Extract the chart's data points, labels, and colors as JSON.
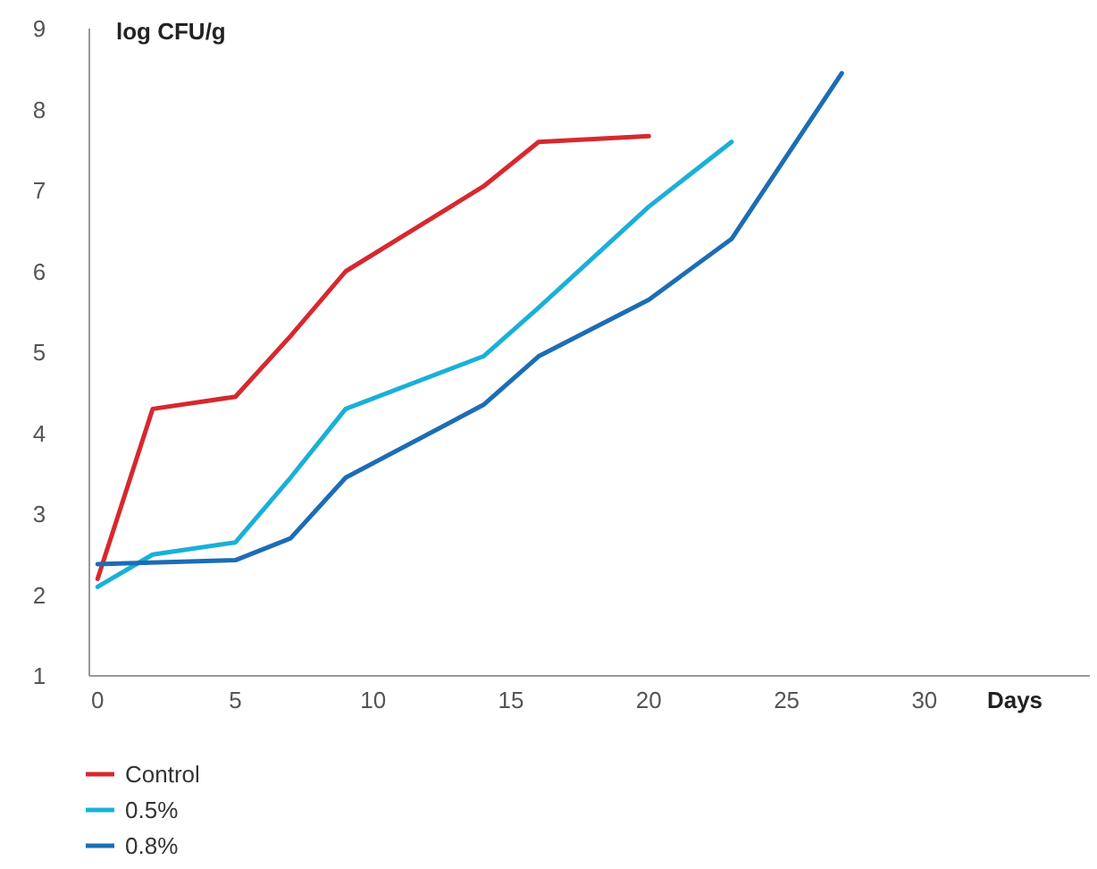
{
  "chart_data": {
    "type": "line",
    "ylabel": "log CFU/g",
    "xlabel": "Days",
    "xlim": [
      -0.3,
      36
    ],
    "ylim": [
      1,
      9
    ],
    "xticks": [
      0,
      5,
      10,
      15,
      20,
      25,
      30
    ],
    "yticks": [
      1,
      2,
      3,
      4,
      5,
      6,
      7,
      8,
      9
    ],
    "grid": false,
    "legend": "bottom",
    "marker": "none",
    "line_style": "solid",
    "series": [
      {
        "name": "Control",
        "color": "#d7282f",
        "x": [
          0,
          2,
          5,
          7,
          9,
          14,
          16,
          20
        ],
        "values": [
          2.2,
          4.3,
          4.45,
          5.2,
          6.0,
          7.05,
          7.6,
          7.67
        ]
      },
      {
        "name": "0.5%",
        "color": "#1ab0d8",
        "x": [
          0,
          2,
          5,
          7,
          9,
          14,
          16,
          20,
          23
        ],
        "values": [
          2.1,
          2.5,
          2.65,
          3.45,
          4.3,
          4.95,
          5.55,
          6.8,
          7.6
        ]
      },
      {
        "name": "0.8%",
        "color": "#1c6db5",
        "x": [
          0,
          5,
          7,
          9,
          14,
          16,
          20,
          23,
          27
        ],
        "values": [
          2.38,
          2.43,
          2.7,
          3.45,
          4.35,
          4.95,
          5.65,
          6.4,
          8.45
        ]
      }
    ]
  }
}
